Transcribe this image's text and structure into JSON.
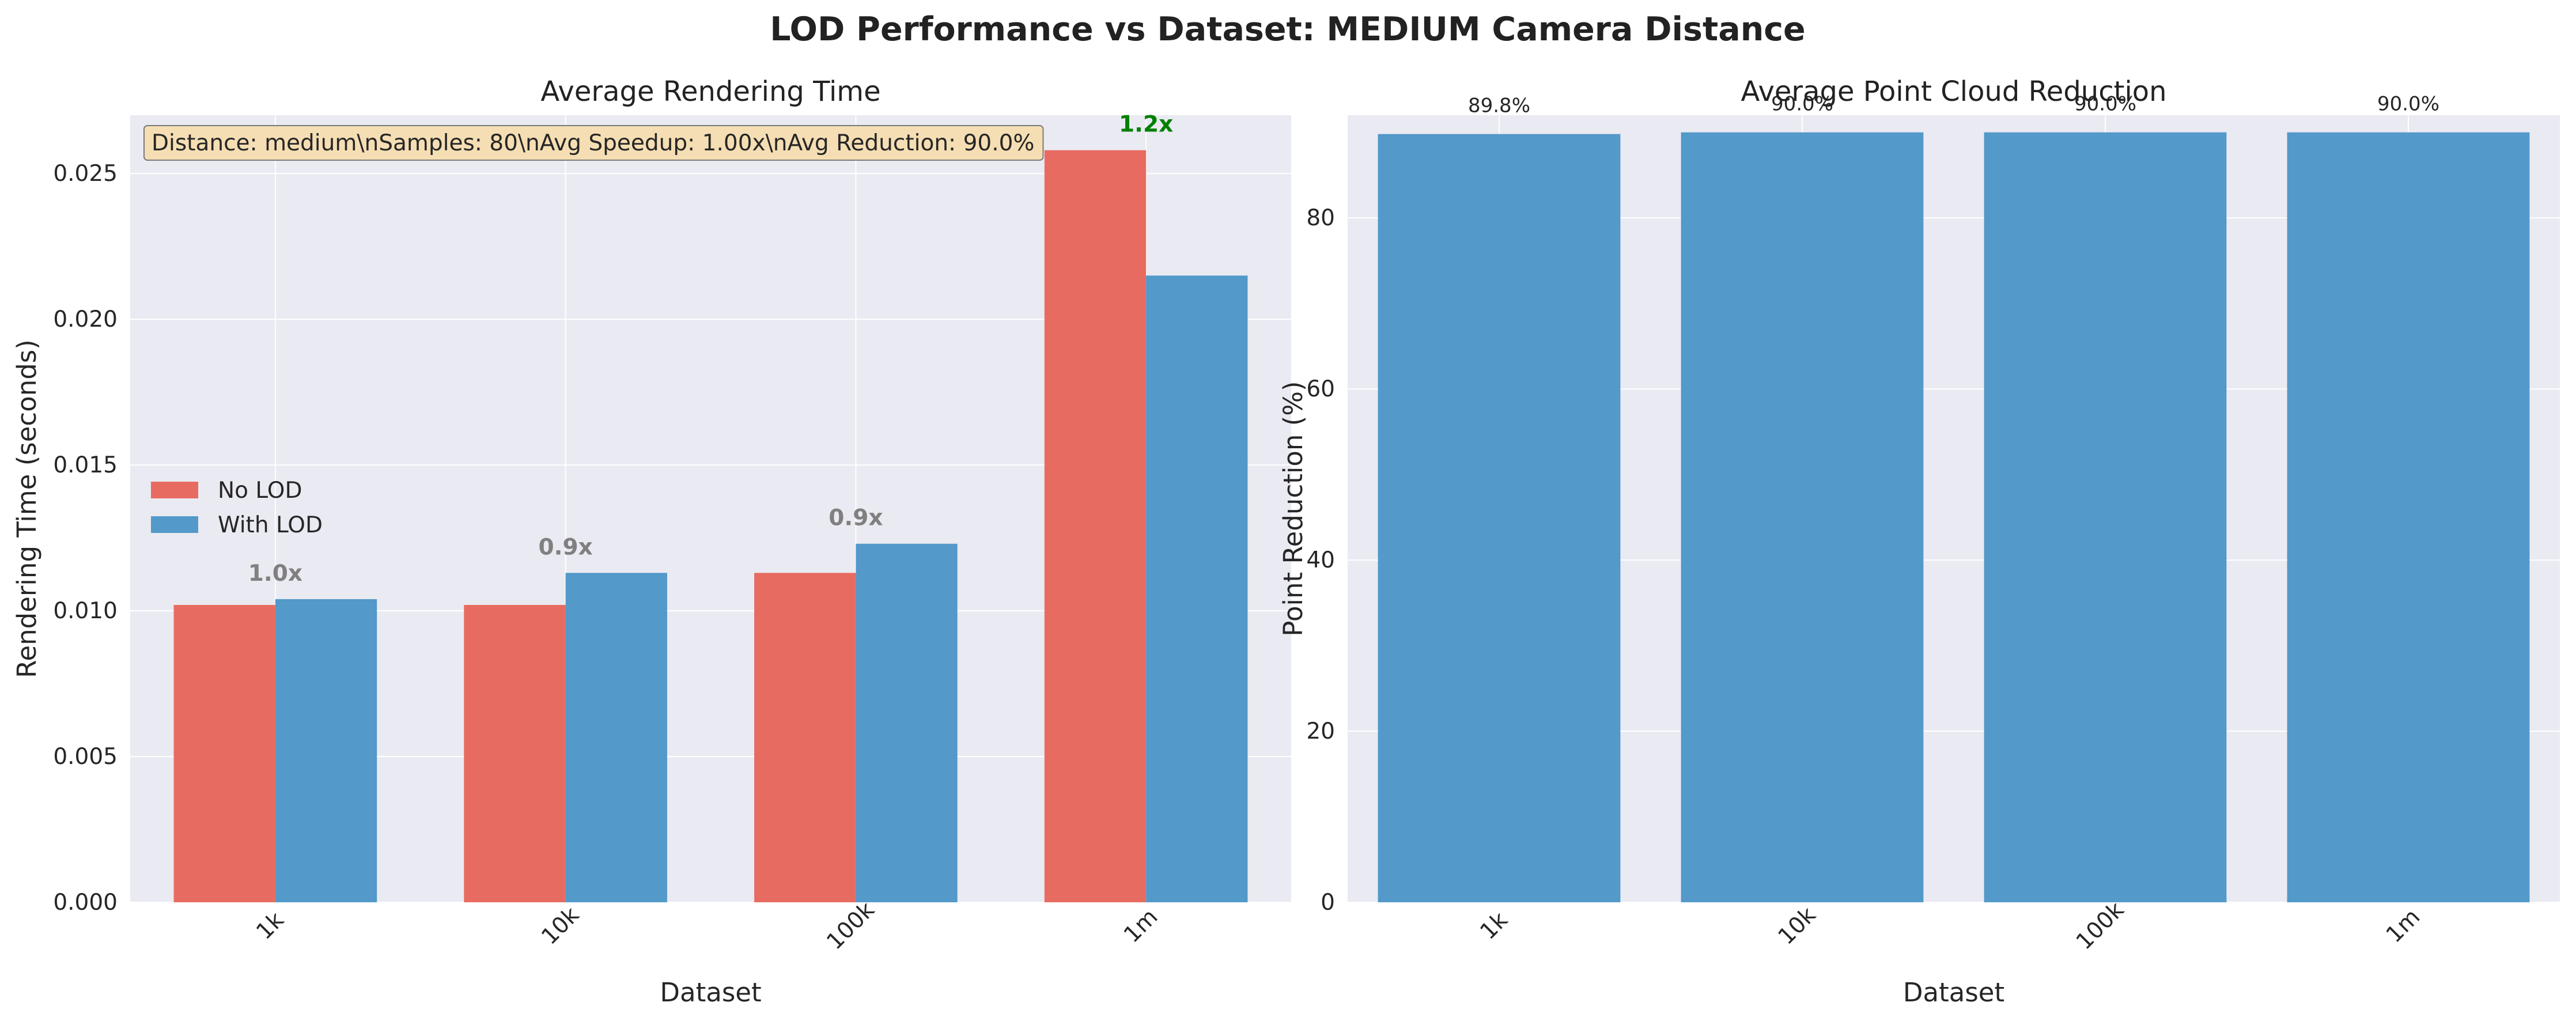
{
  "title": "LOD Performance vs Dataset: MEDIUM Camera Distance",
  "colors": {
    "no_lod": "#e86b61",
    "with_lod": "#5399c9",
    "panel_bg": "#eaeaf2",
    "grid": "#ffffff",
    "speedup_green": "#008000",
    "speedup_gray": "#808080",
    "info_box": "#f5deb3"
  },
  "chart_data": [
    {
      "type": "bar",
      "title": "Average Rendering Time",
      "xlabel": "Dataset",
      "ylabel": "Rendering Time (seconds)",
      "categories": [
        "1k",
        "10k",
        "100k",
        "1m"
      ],
      "ylim": [
        0,
        0.027
      ],
      "yticks": [
        "0.000",
        "0.005",
        "0.010",
        "0.015",
        "0.020",
        "0.025"
      ],
      "series": [
        {
          "name": "No LOD",
          "values": [
            0.0102,
            0.0102,
            0.0113,
            0.0258
          ]
        },
        {
          "name": "With LOD",
          "values": [
            0.0104,
            0.0113,
            0.0123,
            0.0215
          ]
        }
      ],
      "speedup_labels": [
        "1.0x",
        "0.9x",
        "0.9x",
        "1.2x"
      ],
      "info_box": "Distance: medium\\nSamples: 80\\nAvg Speedup: 1.00x\\nAvg Reduction: 90.0%",
      "legend": "center-left",
      "grid": true
    },
    {
      "type": "bar",
      "title": "Average Point Cloud Reduction",
      "xlabel": "Dataset",
      "ylabel": "Point Reduction (%)",
      "categories": [
        "1k",
        "10k",
        "100k",
        "1m"
      ],
      "ylim": [
        0,
        92
      ],
      "yticks": [
        "0",
        "20",
        "40",
        "60",
        "80"
      ],
      "values": [
        89.8,
        90.0,
        90.0,
        90.0
      ],
      "value_labels": [
        "89.8%",
        "90.0%",
        "90.0%",
        "90.0%"
      ],
      "grid": true
    }
  ]
}
